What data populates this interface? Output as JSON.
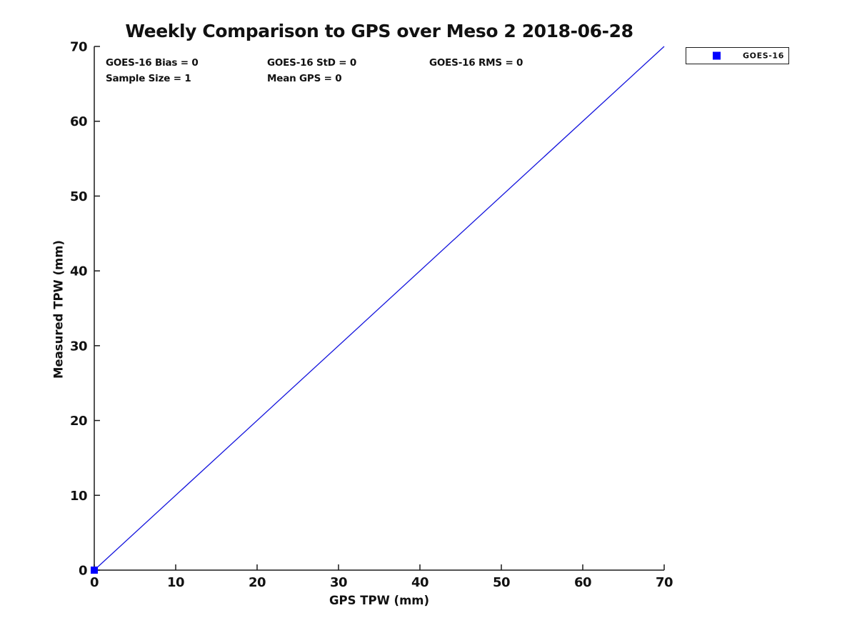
{
  "stats_panel": {
    "row1": [
      "GOES-16 Bias = 0",
      "GOES-16 StD = 0",
      "GOES-16 RMS = 0"
    ],
    "row2": [
      "Sample Size = 1",
      "Mean GPS = 0"
    ]
  },
  "legend": {
    "label": "GOES-16",
    "marker_shape": "filled-square",
    "marker_color": "#0000ff"
  },
  "chart_data": {
    "type": "scatter",
    "title": "Weekly Comparison to GPS over Meso 2 2018-06-28",
    "xlabel": "GPS TPW (mm)",
    "ylabel": "Measured TPW (mm)",
    "xlim": [
      0,
      70
    ],
    "ylim": [
      0,
      70
    ],
    "xticks": [
      0,
      10,
      20,
      30,
      40,
      50,
      60,
      70
    ],
    "yticks": [
      0,
      10,
      20,
      30,
      40,
      50,
      60,
      70
    ],
    "grid": false,
    "legend_position": "outside-top-right",
    "axis_color": "#1a1a1a",
    "series": [
      {
        "name": "identity-line",
        "type": "line",
        "color": "#1414dd",
        "x": [
          0,
          70
        ],
        "y": [
          0,
          70
        ]
      },
      {
        "name": "GOES-16",
        "type": "scatter",
        "marker": "filled-square",
        "marker_size": 10,
        "color": "#0000ff",
        "points": [
          [
            0,
            0
          ]
        ]
      }
    ],
    "stats": {
      "goes16_bias": 0,
      "goes16_std": 0,
      "goes16_rms": 0,
      "sample_size": 1,
      "mean_gps": 0
    }
  }
}
